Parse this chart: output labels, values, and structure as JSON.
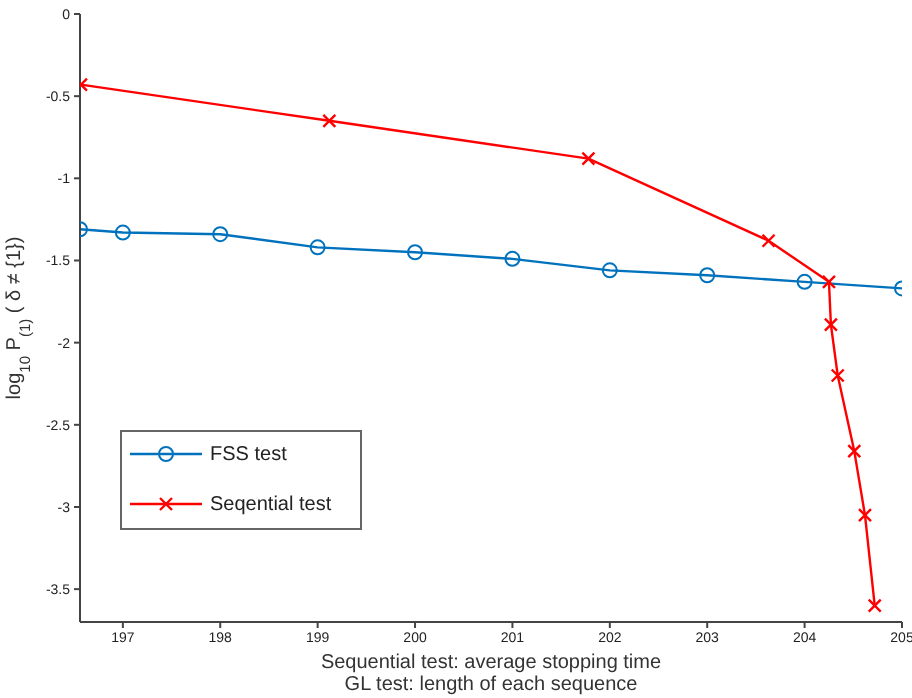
{
  "chart_data": {
    "type": "line",
    "xlabel": "Sequential test: average stopping time\nGL test: length of each sequence",
    "ylabel": "log$_{10}$ P$_{(1)}$ ( δ ≠ {1})",
    "xlim": [
      196.56,
      205
    ],
    "xticks": [
      197,
      198,
      199,
      200,
      201,
      202,
      203,
      204,
      205
    ],
    "ylim": [
      -3.7,
      0
    ],
    "yticks": [
      0,
      -0.5,
      -1,
      -1.5,
      -2,
      -2.5,
      -3,
      -3.5
    ],
    "grid": false,
    "legend": "bottom left",
    "series": [
      {
        "name": "FSS test",
        "color": "#0072bd",
        "marker": "circle",
        "x": [
          196.56,
          197,
          198,
          199,
          200,
          201,
          202,
          203,
          204,
          205
        ],
        "values": [
          -1.31,
          -1.33,
          -1.34,
          -1.42,
          -1.45,
          -1.49,
          -1.56,
          -1.59,
          -1.63,
          -1.67
        ]
      },
      {
        "name": "Seqential test",
        "color": "#ff0000",
        "marker": "cross",
        "x": [
          196.57,
          199.12,
          201.78,
          203.63,
          204.25,
          204.27,
          204.34,
          204.51,
          204.62,
          204.72
        ],
        "values": [
          -0.43,
          -0.65,
          -0.88,
          -1.38,
          -1.63,
          -1.89,
          -2.2,
          -2.66,
          -3.05,
          -3.6
        ]
      }
    ]
  }
}
